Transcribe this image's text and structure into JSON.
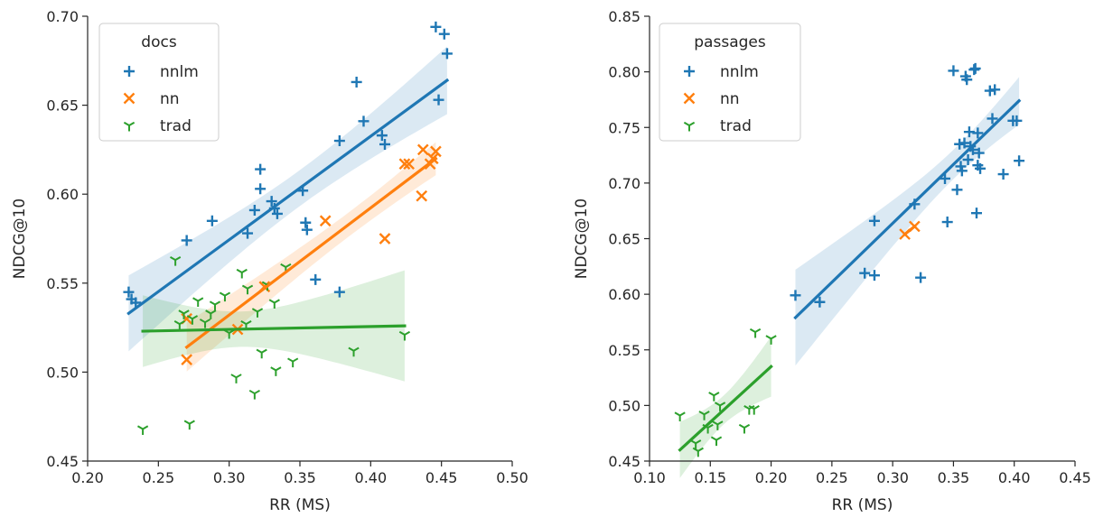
{
  "colors": {
    "nnlm": "#1f77b4",
    "nn": "#ff7f0e",
    "trad": "#2ca02c",
    "axis": "#262626"
  },
  "chart_data": [
    {
      "type": "scatter",
      "xlabel": "RR (MS)",
      "ylabel": "NDCG@10",
      "xlim": [
        0.2,
        0.5
      ],
      "ylim": [
        0.45,
        0.7
      ],
      "xticks": [
        "0.20",
        "0.25",
        "0.30",
        "0.35",
        "0.40",
        "0.45",
        "0.50"
      ],
      "yticks": [
        "0.45",
        "0.50",
        "0.55",
        "0.60",
        "0.65",
        "0.70"
      ],
      "grid": false,
      "legend": {
        "title": "docs",
        "position": "top-left"
      },
      "series": [
        {
          "name": "nnlm",
          "marker": "plus",
          "color": "#1f77b4",
          "points": [
            [
              0.229,
              0.545
            ],
            [
              0.231,
              0.541
            ],
            [
              0.234,
              0.539
            ],
            [
              0.27,
              0.574
            ],
            [
              0.288,
              0.585
            ],
            [
              0.313,
              0.578
            ],
            [
              0.318,
              0.591
            ],
            [
              0.322,
              0.614
            ],
            [
              0.322,
              0.603
            ],
            [
              0.33,
              0.596
            ],
            [
              0.332,
              0.592
            ],
            [
              0.334,
              0.589
            ],
            [
              0.352,
              0.602
            ],
            [
              0.354,
              0.584
            ],
            [
              0.355,
              0.58
            ],
            [
              0.361,
              0.552
            ],
            [
              0.378,
              0.545
            ],
            [
              0.378,
              0.63
            ],
            [
              0.39,
              0.663
            ],
            [
              0.395,
              0.641
            ],
            [
              0.408,
              0.633
            ],
            [
              0.41,
              0.628
            ],
            [
              0.446,
              0.694
            ],
            [
              0.448,
              0.653
            ],
            [
              0.452,
              0.69
            ],
            [
              0.454,
              0.679
            ]
          ],
          "fit": {
            "x": [
              0.229,
              0.454
            ],
            "y": [
              0.533,
              0.664
            ]
          }
        },
        {
          "name": "nn",
          "marker": "x",
          "color": "#ff7f0e",
          "points": [
            [
              0.27,
              0.53
            ],
            [
              0.27,
              0.507
            ],
            [
              0.306,
              0.524
            ],
            [
              0.325,
              0.548
            ],
            [
              0.368,
              0.585
            ],
            [
              0.41,
              0.575
            ],
            [
              0.424,
              0.617
            ],
            [
              0.427,
              0.617
            ],
            [
              0.436,
              0.599
            ],
            [
              0.437,
              0.625
            ],
            [
              0.442,
              0.617
            ],
            [
              0.444,
              0.62
            ],
            [
              0.446,
              0.624
            ]
          ],
          "fit": {
            "x": [
              0.27,
              0.446
            ],
            "y": [
              0.514,
              0.62
            ]
          }
        },
        {
          "name": "trad",
          "marker": "tri",
          "color": "#2ca02c",
          "points": [
            [
              0.239,
              0.468
            ],
            [
              0.262,
              0.563
            ],
            [
              0.265,
              0.527
            ],
            [
              0.268,
              0.533
            ],
            [
              0.272,
              0.471
            ],
            [
              0.274,
              0.53
            ],
            [
              0.278,
              0.54
            ],
            [
              0.283,
              0.528
            ],
            [
              0.287,
              0.533
            ],
            [
              0.29,
              0.538
            ],
            [
              0.297,
              0.543
            ],
            [
              0.3,
              0.522
            ],
            [
              0.305,
              0.497
            ],
            [
              0.309,
              0.556
            ],
            [
              0.312,
              0.527
            ],
            [
              0.313,
              0.547
            ],
            [
              0.318,
              0.488
            ],
            [
              0.32,
              0.534
            ],
            [
              0.323,
              0.511
            ],
            [
              0.327,
              0.549
            ],
            [
              0.332,
              0.539
            ],
            [
              0.333,
              0.501
            ],
            [
              0.34,
              0.559
            ],
            [
              0.345,
              0.506
            ],
            [
              0.388,
              0.512
            ],
            [
              0.424,
              0.521
            ]
          ],
          "fit": {
            "x": [
              0.239,
              0.424
            ],
            "y": [
              0.523,
              0.526
            ]
          }
        }
      ]
    },
    {
      "type": "scatter",
      "xlabel": "RR (MS)",
      "ylabel": "NDCG@10",
      "xlim": [
        0.1,
        0.45
      ],
      "ylim": [
        0.45,
        0.85
      ],
      "xticks": [
        "0.10",
        "0.15",
        "0.20",
        "0.25",
        "0.30",
        "0.35",
        "0.40",
        "0.45"
      ],
      "yticks": [
        "0.45",
        "0.50",
        "0.55",
        "0.60",
        "0.65",
        "0.70",
        "0.75",
        "0.80",
        "0.85"
      ],
      "grid": false,
      "legend": {
        "title": "passages",
        "position": "top-left"
      },
      "series": [
        {
          "name": "nnlm",
          "marker": "plus",
          "color": "#1f77b4",
          "points": [
            [
              0.22,
              0.599
            ],
            [
              0.24,
              0.593
            ],
            [
              0.277,
              0.619
            ],
            [
              0.285,
              0.666
            ],
            [
              0.285,
              0.617
            ],
            [
              0.318,
              0.681
            ],
            [
              0.323,
              0.615
            ],
            [
              0.343,
              0.704
            ],
            [
              0.345,
              0.665
            ],
            [
              0.35,
              0.801
            ],
            [
              0.353,
              0.694
            ],
            [
              0.355,
              0.735
            ],
            [
              0.356,
              0.715
            ],
            [
              0.357,
              0.711
            ],
            [
              0.359,
              0.736
            ],
            [
              0.36,
              0.796
            ],
            [
              0.361,
              0.793
            ],
            [
              0.362,
              0.721
            ],
            [
              0.363,
              0.746
            ],
            [
              0.364,
              0.733
            ],
            [
              0.366,
              0.73
            ],
            [
              0.367,
              0.802
            ],
            [
              0.368,
              0.803
            ],
            [
              0.369,
              0.673
            ],
            [
              0.37,
              0.745
            ],
            [
              0.37,
              0.716
            ],
            [
              0.371,
              0.727
            ],
            [
              0.372,
              0.713
            ],
            [
              0.38,
              0.783
            ],
            [
              0.382,
              0.758
            ],
            [
              0.384,
              0.784
            ],
            [
              0.391,
              0.708
            ],
            [
              0.399,
              0.756
            ],
            [
              0.402,
              0.756
            ],
            [
              0.404,
              0.72
            ]
          ],
          "fit": {
            "x": [
              0.22,
              0.404
            ],
            "y": [
              0.579,
              0.774
            ]
          }
        },
        {
          "name": "nn",
          "marker": "x",
          "color": "#ff7f0e",
          "points": [
            [
              0.31,
              0.654
            ],
            [
              0.318,
              0.661
            ]
          ],
          "fit": {
            "x": [
              0.31,
              0.318
            ],
            "y": [
              0.654,
              0.661
            ]
          }
        },
        {
          "name": "trad",
          "marker": "tri",
          "color": "#2ca02c",
          "points": [
            [
              0.125,
              0.491
            ],
            [
              0.138,
              0.466
            ],
            [
              0.14,
              0.459
            ],
            [
              0.145,
              0.492
            ],
            [
              0.148,
              0.48
            ],
            [
              0.153,
              0.509
            ],
            [
              0.155,
              0.469
            ],
            [
              0.156,
              0.483
            ],
            [
              0.158,
              0.5
            ],
            [
              0.178,
              0.48
            ],
            [
              0.182,
              0.497
            ],
            [
              0.186,
              0.497
            ],
            [
              0.187,
              0.566
            ],
            [
              0.2,
              0.56
            ]
          ],
          "fit": {
            "x": [
              0.125,
              0.2
            ],
            "y": [
              0.46,
              0.535
            ]
          }
        }
      ]
    }
  ]
}
